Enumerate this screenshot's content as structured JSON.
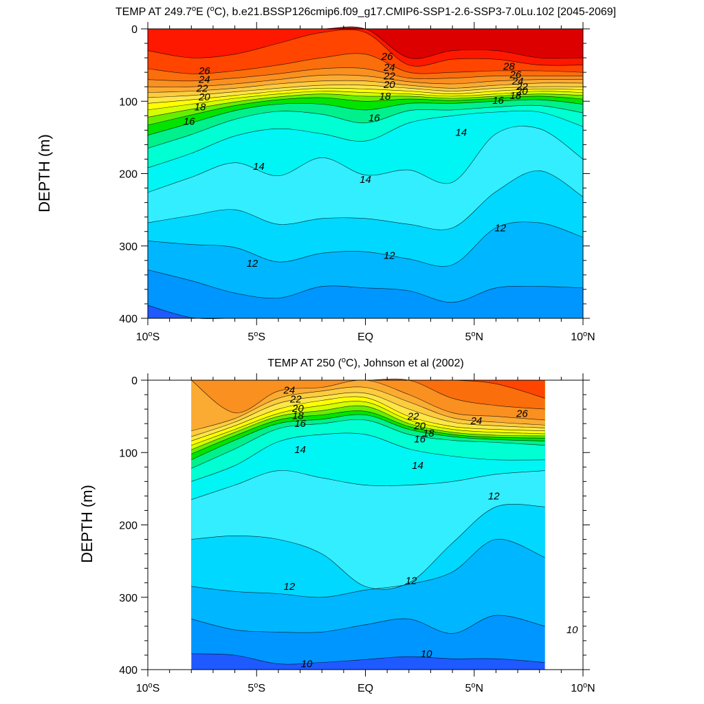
{
  "chart_data": [
    {
      "type": "heatmap",
      "title": "TEMP AT 249.7",
      "title_deg": "o",
      "title_rest": "E (",
      "title_unit_deg": "o",
      "title_tail": "C), b.e21.BSSP126cmip6.f09_g17.CMIP6-SSP1-2.6-SSP3-7.0Lu.102 [2045-2069]",
      "ylabel": "DEPTH (m)",
      "xlim": [
        -10,
        10
      ],
      "ylim": [
        0,
        400
      ],
      "x_ticks": [
        {
          "v": -10,
          "label": "10",
          "deg": "o",
          "suffix": "S"
        },
        {
          "v": -5,
          "label": "5",
          "deg": "o",
          "suffix": "S"
        },
        {
          "v": 0,
          "label": "EQ",
          "deg": "",
          "suffix": ""
        },
        {
          "v": 5,
          "label": "5",
          "deg": "o",
          "suffix": "N"
        },
        {
          "v": 10,
          "label": "10",
          "deg": "o",
          "suffix": "N"
        }
      ],
      "y_ticks": [
        0,
        100,
        200,
        300,
        400
      ],
      "data_xrange": [
        -10,
        10
      ],
      "isotherms": {
        "x": [
          -10,
          -8,
          -6,
          -4,
          -2,
          0,
          2,
          4,
          6,
          8,
          10
        ],
        "levels": [
          {
            "t": 28,
            "depth": [
              -1,
              -1,
              -1,
              -1,
              -1,
              -1,
              40,
              30,
              30,
              40,
              40
            ]
          },
          {
            "t": 27,
            "depth": [
              30,
              40,
              35,
              20,
              5,
              5,
              50,
              42,
              42,
              50,
              50
            ]
          },
          {
            "t": 26,
            "depth": [
              55,
              62,
              58,
              50,
              40,
              35,
              60,
              60,
              58,
              58,
              60
            ]
          },
          {
            "t": 25,
            "depth": [
              70,
              72,
              68,
              62,
              55,
              55,
              68,
              68,
              65,
              65,
              65
            ]
          },
          {
            "t": 24,
            "depth": [
              80,
              80,
              76,
              70,
              64,
              65,
              73,
              76,
              72,
              70,
              70
            ]
          },
          {
            "t": 23,
            "depth": [
              88,
              86,
              82,
              76,
              72,
              72,
              78,
              82,
              78,
              75,
              75
            ]
          },
          {
            "t": 22,
            "depth": [
              95,
              92,
              87,
              82,
              78,
              78,
              82,
              86,
              82,
              80,
              80
            ]
          },
          {
            "t": 21,
            "depth": [
              103,
              98,
              92,
              86,
              82,
              83,
              86,
              90,
              86,
              83,
              84
            ]
          },
          {
            "t": 20,
            "depth": [
              112,
              104,
              96,
              90,
              86,
              88,
              90,
              93,
              90,
              86,
              88
            ]
          },
          {
            "t": 19,
            "depth": [
              122,
              111,
              101,
              94,
              90,
              93,
              93,
              96,
              93,
              90,
              92
            ]
          },
          {
            "t": 18,
            "depth": [
              133,
              119,
              106,
              98,
              95,
              100,
              97,
              99,
              96,
              93,
              97
            ]
          },
          {
            "t": 17,
            "depth": [
              147,
              130,
              113,
              104,
              104,
              112,
              103,
              103,
              100,
              98,
              104
            ]
          },
          {
            "t": 16,
            "depth": [
              165,
              146,
              125,
              114,
              118,
              130,
              113,
              112,
              108,
              106,
              116
            ]
          },
          {
            "t": 15,
            "depth": [
              192,
              172,
              148,
              138,
              145,
              155,
              130,
              120,
              115,
              115,
              135
            ]
          },
          {
            "t": 14,
            "depth": [
              226,
              205,
              185,
              203,
              178,
              202,
              195,
              212,
              145,
              138,
              180
            ]
          },
          {
            "t": 13,
            "depth": [
              268,
              258,
              250,
              270,
              262,
              262,
              270,
              275,
              225,
              196,
              232
            ]
          },
          {
            "t": 12,
            "depth": [
              293,
              298,
              302,
              322,
              310,
              308,
              318,
              326,
              275,
              268,
              288
            ]
          },
          {
            "t": 11,
            "depth": [
              333,
              348,
              365,
              372,
              356,
              358,
              362,
              378,
              358,
              356,
              358
            ]
          },
          {
            "t": 10,
            "depth": [
              382,
              399,
              410,
              420,
              420,
              420,
              420,
              420,
              420,
              420,
              420
            ]
          }
        ]
      },
      "contour_labels": [
        {
          "text": "26",
          "x": -7.4,
          "y": 58
        },
        {
          "text": "24",
          "x": -7.4,
          "y": 70
        },
        {
          "text": "22",
          "x": -7.5,
          "y": 82
        },
        {
          "text": "20",
          "x": -7.4,
          "y": 94
        },
        {
          "text": "18",
          "x": -7.6,
          "y": 108
        },
        {
          "text": "16",
          "x": -8.1,
          "y": 128
        },
        {
          "text": "14",
          "x": -4.9,
          "y": 190
        },
        {
          "text": "14",
          "x": 0.0,
          "y": 208
        },
        {
          "text": "12",
          "x": -5.2,
          "y": 324
        },
        {
          "text": "12",
          "x": 1.1,
          "y": 313
        },
        {
          "text": "26",
          "x": 1.0,
          "y": 38
        },
        {
          "text": "24",
          "x": 1.1,
          "y": 53
        },
        {
          "text": "22",
          "x": 1.1,
          "y": 65
        },
        {
          "text": "20",
          "x": 1.1,
          "y": 77
        },
        {
          "text": "18",
          "x": 0.9,
          "y": 93
        },
        {
          "text": "16",
          "x": 0.4,
          "y": 123
        },
        {
          "text": "14",
          "x": 4.4,
          "y": 143
        },
        {
          "text": "12",
          "x": 6.2,
          "y": 275
        },
        {
          "text": "28",
          "x": 6.6,
          "y": 52
        },
        {
          "text": "26",
          "x": 6.9,
          "y": 63
        },
        {
          "text": "24",
          "x": 7.0,
          "y": 72
        },
        {
          "text": "22",
          "x": 7.2,
          "y": 80
        },
        {
          "text": "20",
          "x": 7.2,
          "y": 86
        },
        {
          "text": "18",
          "x": 6.9,
          "y": 92
        },
        {
          "text": "16",
          "x": 6.1,
          "y": 99
        }
      ]
    },
    {
      "type": "heatmap",
      "title": "TEMP AT 250 (",
      "title_unit_deg": "o",
      "title_tail": "C), Johnson et al (2002)",
      "ylabel": "DEPTH (m)",
      "xlim": [
        -10,
        10
      ],
      "ylim": [
        0,
        400
      ],
      "x_ticks": [
        {
          "v": -10,
          "label": "10",
          "deg": "o",
          "suffix": "S"
        },
        {
          "v": -5,
          "label": "5",
          "deg": "o",
          "suffix": "S"
        },
        {
          "v": 0,
          "label": "EQ",
          "deg": "",
          "suffix": ""
        },
        {
          "v": 5,
          "label": "5",
          "deg": "o",
          "suffix": "N"
        },
        {
          "v": 10,
          "label": "10",
          "deg": "o",
          "suffix": "N"
        }
      ],
      "y_ticks": [
        0,
        100,
        200,
        300,
        400
      ],
      "data_xrange": [
        -8,
        8.25
      ],
      "isotherms": {
        "x": [
          -8,
          -6,
          -4,
          -2,
          0,
          2,
          4,
          6,
          8.25
        ],
        "levels": [
          {
            "t": 26,
            "depth": [
              -1,
              -1,
              -1,
              -1,
              -1,
              -1,
              -1,
              5,
              25
            ]
          },
          {
            "t": 25,
            "depth": [
              -1,
              -1,
              -1,
              -1,
              -1,
              -1,
              25,
              35,
              40
            ]
          },
          {
            "t": 24,
            "depth": [
              -1,
              45,
              15,
              10,
              0,
              20,
              45,
              50,
              55
            ]
          },
          {
            "t": 23,
            "depth": [
              70,
              53,
              25,
              15,
              10,
              30,
              52,
              58,
              62
            ]
          },
          {
            "t": 22,
            "depth": [
              78,
              58,
              32,
              22,
              18,
              40,
              58,
              63,
              66
            ]
          },
          {
            "t": 21,
            "depth": [
              84,
              63,
              40,
              28,
              24,
              50,
              64,
              68,
              70
            ]
          },
          {
            "t": 20,
            "depth": [
              90,
              68,
              46,
              35,
              30,
              55,
              68,
              72,
              74
            ]
          },
          {
            "t": 19,
            "depth": [
              96,
              72,
              50,
              42,
              36,
              60,
              72,
              76,
              77
            ]
          },
          {
            "t": 18,
            "depth": [
              102,
              77,
              55,
              48,
              43,
              64,
              75,
              79,
              80
            ]
          },
          {
            "t": 17,
            "depth": [
              110,
              83,
              60,
              54,
              48,
              68,
              78,
              82,
              84
            ]
          },
          {
            "t": 16,
            "depth": [
              122,
              95,
              67,
              60,
              55,
              75,
              83,
              86,
              90
            ]
          },
          {
            "t": 15,
            "depth": [
              140,
              118,
              85,
              75,
              75,
              95,
              105,
              110,
              110
            ]
          },
          {
            "t": 14,
            "depth": [
              165,
              145,
              125,
              135,
              145,
              145,
              140,
              130,
              125
            ]
          },
          {
            "t": 13,
            "depth": [
              220,
              215,
              220,
              240,
              285,
              280,
              225,
              175,
              175
            ]
          },
          {
            "t": 12,
            "depth": [
              285,
              292,
              295,
              300,
              290,
              282,
              265,
              220,
              245
            ]
          },
          {
            "t": 11,
            "depth": [
              330,
              345,
              348,
              348,
              338,
              330,
              350,
              325,
              340
            ]
          },
          {
            "t": 10,
            "depth": [
              378,
              380,
              392,
              390,
              386,
              382,
              385,
              385,
              390
            ]
          }
        ]
      },
      "contour_labels": [
        {
          "text": "24",
          "x": -3.5,
          "y": 14
        },
        {
          "text": "22",
          "x": -3.2,
          "y": 26
        },
        {
          "text": "20",
          "x": -3.1,
          "y": 39
        },
        {
          "text": "18",
          "x": -3.1,
          "y": 49
        },
        {
          "text": "16",
          "x": -3.0,
          "y": 60
        },
        {
          "text": "14",
          "x": -3.0,
          "y": 96
        },
        {
          "text": "22",
          "x": 2.2,
          "y": 50
        },
        {
          "text": "20",
          "x": 2.5,
          "y": 63
        },
        {
          "text": "18",
          "x": 2.9,
          "y": 73
        },
        {
          "text": "16",
          "x": 2.5,
          "y": 81
        },
        {
          "text": "24",
          "x": 5.1,
          "y": 56
        },
        {
          "text": "26",
          "x": 7.2,
          "y": 46
        },
        {
          "text": "14",
          "x": 2.4,
          "y": 118
        },
        {
          "text": "12",
          "x": 5.9,
          "y": 160
        },
        {
          "text": "12",
          "x": -3.5,
          "y": 285
        },
        {
          "text": "12",
          "x": 2.1,
          "y": 277
        },
        {
          "text": "10",
          "x": -2.7,
          "y": 392
        },
        {
          "text": "10",
          "x": 2.8,
          "y": 378
        },
        {
          "text": "10",
          "x": 9.5,
          "y": 345
        }
      ]
    }
  ],
  "colors": {
    "t28": "#dd0000",
    "t27": "#ff1800",
    "t26": "#ff4500",
    "t25": "#fb6e0c",
    "t24": "#f99020",
    "t23": "#fbab32",
    "t22": "#fccc3e",
    "t21": "#ffe648",
    "t20": "#ffff00",
    "t19": "#d4ff00",
    "t18": "#66ee00",
    "t17": "#00e400",
    "t16": "#00f08c",
    "t15": "#00ffd2",
    "t14": "#00f5f5",
    "t13": "#33eeff",
    "t12": "#00d8ff",
    "t11": "#00b6ff",
    "t10": "#0096ff",
    "t9": "#1e5aff",
    "below": "#0a3cd0"
  }
}
